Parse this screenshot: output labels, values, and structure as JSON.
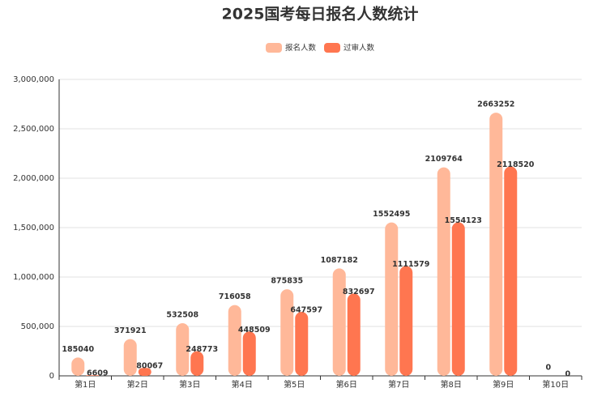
{
  "chart_data": {
    "type": "bar",
    "title": "2025国考每日报名人数统计",
    "categories": [
      "第1日",
      "第2日",
      "第3日",
      "第4日",
      "第5日",
      "第6日",
      "第7日",
      "第8日",
      "第9日",
      "第10日"
    ],
    "series": [
      {
        "name": "报名人数",
        "color": "#ffb899",
        "values": [
          185040,
          371921,
          532508,
          716058,
          875835,
          1087182,
          1552495,
          2109764,
          2663252,
          0
        ]
      },
      {
        "name": "过审人数",
        "color": "#ff7650",
        "values": [
          6609,
          80067,
          248773,
          448509,
          647597,
          832697,
          1111579,
          1554123,
          2118520,
          0
        ]
      }
    ],
    "ylim": [
      0,
      3000000
    ],
    "yticks": [
      0,
      {
        "value": 500000,
        "label": "500,000"
      },
      {
        "value": 1000000,
        "label": "1,000,000"
      },
      {
        "value": 1500000,
        "label": "1,500,000"
      },
      {
        "value": 2000000,
        "label": "2,000,000"
      },
      {
        "value": 2500000,
        "label": "2,500,000"
      },
      {
        "value": 3000000,
        "label": "3,000,000"
      }
    ],
    "grid": true
  }
}
